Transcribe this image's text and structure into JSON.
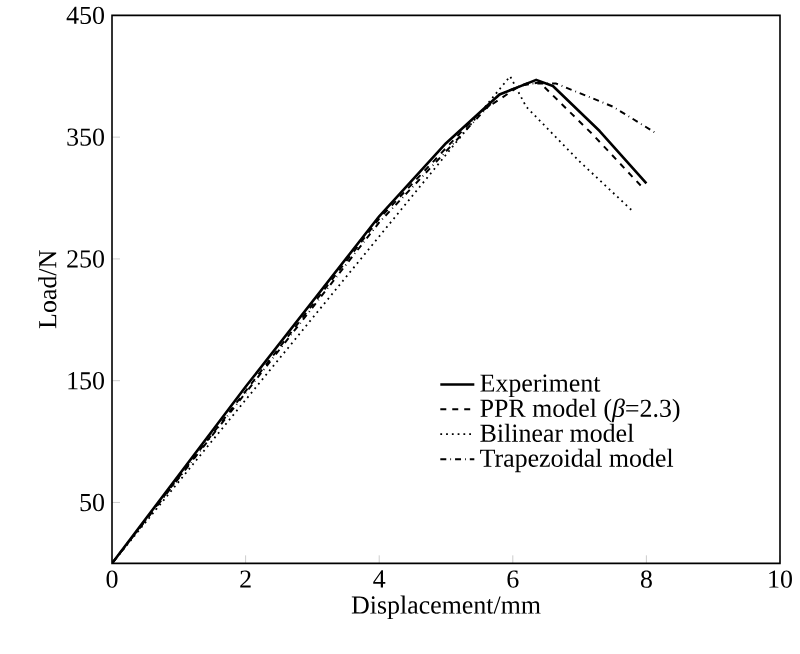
{
  "chart_data": {
    "type": "line",
    "xlabel": "Displacement/mm",
    "ylabel": "Load/N",
    "xlim": [
      0,
      10
    ],
    "ylim": [
      0,
      450
    ],
    "xticks": [
      0,
      2,
      4,
      6,
      8,
      10
    ],
    "yticks": [
      50,
      150,
      250,
      350,
      450
    ],
    "legend": "right",
    "grid": false,
    "series": [
      {
        "name": "Experiment",
        "color": "#000000",
        "line_style": "solid",
        "x": [
          0,
          2,
          4,
          5,
          5.8,
          6.35,
          6.6,
          7.3,
          8.0
        ],
        "values": [
          0,
          145,
          285,
          345,
          385,
          397,
          392,
          355,
          312
        ]
      },
      {
        "name": "PPR model (*β*=2.3)",
        "color": "#000000",
        "line_style": "dashed",
        "x": [
          0,
          4,
          5.5,
          6.1,
          6.4,
          7.2,
          7.97
        ],
        "values": [
          0,
          283,
          370,
          392,
          395,
          352,
          307
        ]
      },
      {
        "name": "Bilinear model",
        "color": "#000000",
        "line_style": "dotted",
        "x": [
          0,
          5.96,
          6.2,
          7.0,
          7.8
        ],
        "values": [
          0,
          400,
          375,
          330,
          289
        ]
      },
      {
        "name": "Trapezoidal model",
        "color": "#000000",
        "line_style": "dashdot",
        "x": [
          0,
          4,
          5.8,
          6.2,
          6.65,
          7.5,
          8.15
        ],
        "values": [
          0,
          280,
          385,
          394,
          394,
          375,
          353
        ]
      }
    ]
  }
}
